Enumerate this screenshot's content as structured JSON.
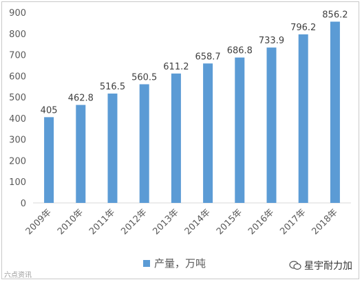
{
  "chart_data": {
    "type": "bar",
    "categories": [
      "2009年",
      "2010年",
      "2011年",
      "2012年",
      "2013年",
      "2014年",
      "2015年",
      "2016年",
      "2017年",
      "2018年"
    ],
    "series": [
      {
        "name": "产量，万吨",
        "values": [
          405,
          462.8,
          516.5,
          560.5,
          611.2,
          658.7,
          686.8,
          733.9,
          796.2,
          856.2
        ]
      }
    ],
    "data_labels": [
      "405",
      "462.8",
      "516.5",
      "560.5",
      "611.2",
      "658.7",
      "686.8",
      "733.9",
      "796.2",
      "856.2"
    ],
    "y_ticks": [
      "0",
      "100",
      "200",
      "300",
      "400",
      "500",
      "600",
      "700",
      "800",
      "900"
    ],
    "ylim": [
      0,
      900
    ],
    "grid": false,
    "legend_position": "bottom",
    "colors": {
      "bar": "#5b9bd5",
      "axis": "#d9d9d9"
    }
  },
  "watermarks": {
    "left": "六点资讯",
    "right": "星宇耐力加"
  }
}
